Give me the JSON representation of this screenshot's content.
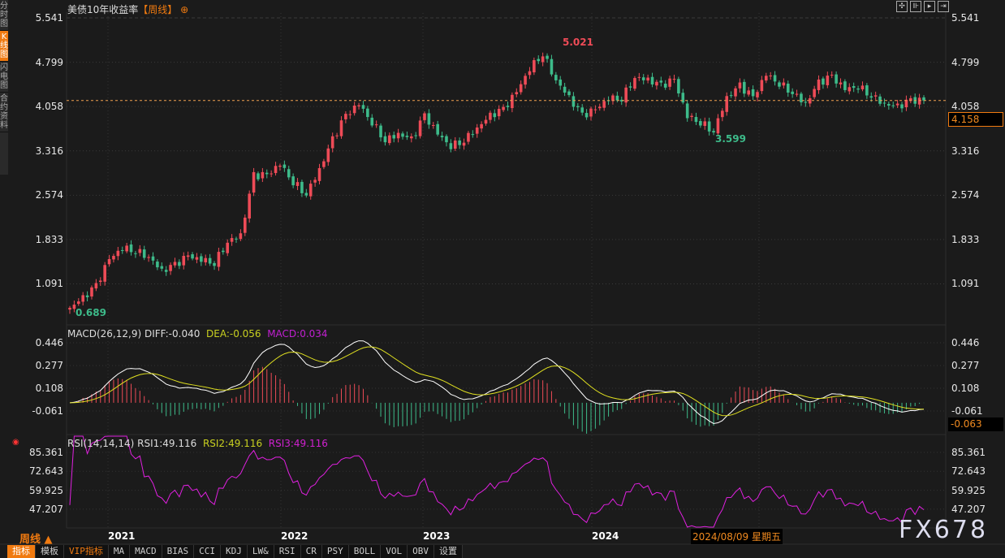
{
  "sidebar": {
    "tabs": [
      "分时图",
      "K线图",
      "闪电图",
      "合约资料"
    ],
    "active": 1
  },
  "header": {
    "title": "美债10年收益率",
    "period_tag": "【周线】",
    "toolbar_icons": [
      "crosshair-icon",
      "zoom-in-icon",
      "zoom-out-icon",
      "scroll-right-icon"
    ]
  },
  "price_axis": {
    "labels": [
      "5.541",
      "4.799",
      "4.058",
      "3.316",
      "2.574",
      "1.833",
      "1.091"
    ],
    "current": "4.158"
  },
  "annotations": {
    "high": "5.021",
    "low_mid": "3.599",
    "low": "0.689"
  },
  "macd": {
    "label": "MACD(26,12,9)",
    "diff": "DIFF:-0.040",
    "dea": "DEA:-0.056",
    "macd": "MACD:0.034",
    "axis": [
      "0.446",
      "0.277",
      "0.108",
      "-0.061"
    ],
    "current": "-0.063"
  },
  "rsi": {
    "label": "RSI(14,14,14)",
    "rsi1": "RSI1:49.116",
    "rsi2": "RSI2:49.116",
    "rsi3": "RSI3:49.116",
    "axis": [
      "85.361",
      "72.643",
      "59.925",
      "47.207"
    ]
  },
  "x_axis": {
    "labels": [
      "2021",
      "2022",
      "2023",
      "2024"
    ],
    "cursor_date": "2024/08/09 星期五"
  },
  "period_selector": "周线 ▲",
  "bottom_tabs": [
    "指标",
    "模板",
    "VIP指标",
    "MA",
    "MACD",
    "BIAS",
    "CCI",
    "KDJ",
    "LW&",
    "RSI",
    "CR",
    "PSY",
    "BOLL",
    "VOL",
    "OBV",
    "设置"
  ],
  "watermark": "FX678",
  "colors": {
    "up": "#ee4b57",
    "down": "#3dbb8a",
    "accent": "#f07a10",
    "diff": "#ffffff",
    "dea": "#e0e020",
    "rsi": "#e020e0"
  },
  "chart_data": {
    "type": "candlestick",
    "title": "美债10年收益率",
    "ylim": [
      0.689,
      5.541
    ],
    "closes": [
      0.69,
      0.85,
      1.05,
      1.5,
      1.7,
      1.65,
      1.55,
      1.3,
      1.4,
      1.55,
      1.5,
      1.45,
      1.8,
      1.9,
      2.9,
      2.9,
      3.1,
      2.8,
      2.6,
      3.0,
      3.5,
      3.9,
      4.1,
      3.8,
      3.5,
      3.6,
      3.5,
      3.9,
      3.6,
      3.4,
      3.5,
      3.7,
      3.9,
      4.0,
      4.3,
      4.7,
      4.95,
      4.5,
      4.2,
      3.9,
      4.0,
      4.2,
      4.2,
      4.55,
      4.5,
      4.4,
      4.5,
      3.9,
      3.8,
      3.65,
      4.2,
      4.4,
      4.2,
      4.6,
      4.45,
      4.3,
      4.1,
      4.45,
      4.55,
      4.35,
      4.4,
      4.25,
      4.1,
      4.05,
      4.15,
      4.158
    ]
  }
}
